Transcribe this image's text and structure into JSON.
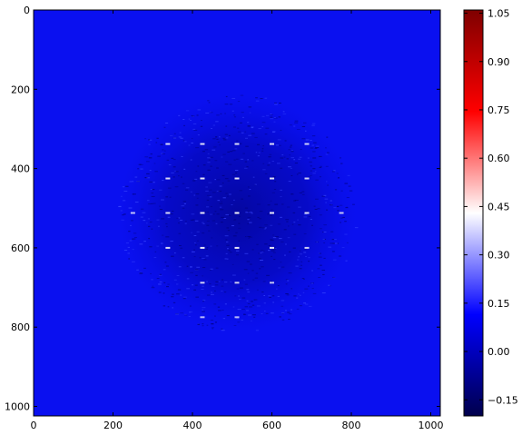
{
  "chart_data": {
    "type": "heatmap",
    "title": "",
    "xlabel": "",
    "ylabel": "",
    "xlim": [
      0,
      1024
    ],
    "ylim": [
      1024,
      0
    ],
    "y_axis_inverted": true,
    "x_ticks": [
      0,
      200,
      400,
      600,
      800,
      1000
    ],
    "y_ticks": [
      0,
      200,
      400,
      600,
      800,
      1000
    ],
    "x_tick_labels": [
      "0",
      "200",
      "400",
      "600",
      "800",
      "1000"
    ],
    "y_tick_labels": [
      "0",
      "200",
      "400",
      "600",
      "800",
      "1000"
    ],
    "colormap": "seismic",
    "colorbar": {
      "range": [
        -0.2,
        1.06
      ],
      "ticks": [
        -0.15,
        0.0,
        0.15,
        0.3,
        0.45,
        0.6,
        0.75,
        0.9,
        1.05
      ],
      "tick_labels": [
        "−0.15",
        "0.00",
        "0.15",
        "0.30",
        "0.45",
        "0.60",
        "0.75",
        "0.90",
        "1.05"
      ]
    },
    "background_value": 0.0,
    "speckle_region": {
      "center": [
        512,
        512
      ],
      "radius": 300,
      "description_values": "noisy values around 0"
    },
    "bright_points": [
      {
        "x": 338,
        "y": 338,
        "v": 0.45
      },
      {
        "x": 425,
        "y": 338,
        "v": 0.45
      },
      {
        "x": 512,
        "y": 338,
        "v": 0.45
      },
      {
        "x": 600,
        "y": 338,
        "v": 0.45
      },
      {
        "x": 688,
        "y": 338,
        "v": 0.4
      },
      {
        "x": 338,
        "y": 425,
        "v": 0.45
      },
      {
        "x": 425,
        "y": 425,
        "v": 0.5
      },
      {
        "x": 512,
        "y": 425,
        "v": 0.5
      },
      {
        "x": 600,
        "y": 425,
        "v": 0.45
      },
      {
        "x": 688,
        "y": 425,
        "v": 0.4
      },
      {
        "x": 250,
        "y": 512,
        "v": 0.35
      },
      {
        "x": 338,
        "y": 512,
        "v": 0.45
      },
      {
        "x": 425,
        "y": 512,
        "v": 0.5
      },
      {
        "x": 512,
        "y": 512,
        "v": 0.55
      },
      {
        "x": 600,
        "y": 512,
        "v": 0.5
      },
      {
        "x": 688,
        "y": 512,
        "v": 0.45
      },
      {
        "x": 775,
        "y": 512,
        "v": 0.35
      },
      {
        "x": 338,
        "y": 600,
        "v": 0.45
      },
      {
        "x": 425,
        "y": 600,
        "v": 0.5
      },
      {
        "x": 512,
        "y": 600,
        "v": 0.5
      },
      {
        "x": 600,
        "y": 600,
        "v": 0.5
      },
      {
        "x": 688,
        "y": 600,
        "v": 0.4
      },
      {
        "x": 425,
        "y": 688,
        "v": 0.4
      },
      {
        "x": 512,
        "y": 688,
        "v": 0.4
      },
      {
        "x": 600,
        "y": 688,
        "v": 0.35
      },
      {
        "x": 425,
        "y": 775,
        "v": 0.3
      },
      {
        "x": 512,
        "y": 775,
        "v": 0.3
      }
    ]
  }
}
